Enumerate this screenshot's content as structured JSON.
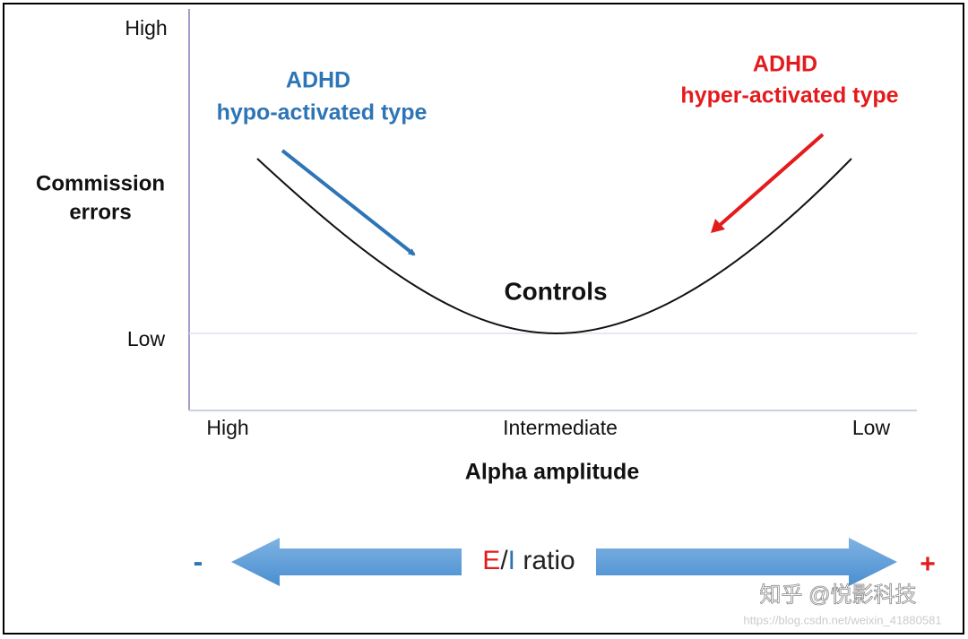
{
  "y_axis": {
    "top_label": "High",
    "bottom_label": "Low",
    "title_lines": [
      "Commission",
      "errors"
    ]
  },
  "x_axis": {
    "labels": [
      "High",
      "Intermediate",
      "Low"
    ],
    "title": "Alpha amplitude"
  },
  "annotations": {
    "hypo": {
      "lines": [
        "ADHD",
        "hypo-activated type"
      ]
    },
    "hyper": {
      "lines": [
        "ADHD",
        "hyper-activated type"
      ]
    },
    "controls": "Controls"
  },
  "ei_scale": {
    "minus": "-",
    "plus": "+",
    "label_parts": [
      "E",
      "/",
      "I",
      " ratio"
    ]
  },
  "watermark": {
    "main": "知乎 @悦影科技",
    "url": "https://blog.csdn.net/weixin_41880581"
  }
}
